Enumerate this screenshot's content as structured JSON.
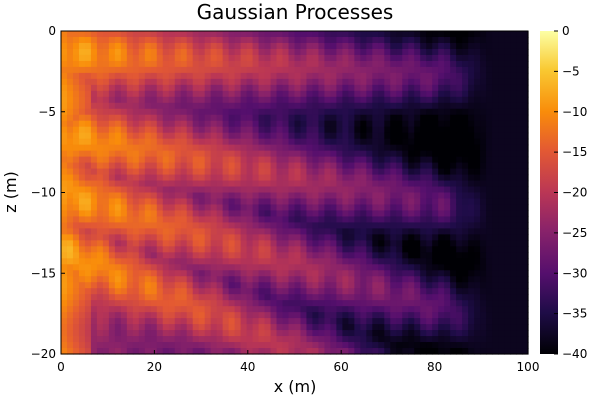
{
  "chart_data": {
    "type": "heatmap",
    "title": "Gaussian Processes",
    "xlabel": "x (m)",
    "ylabel": "z (m)",
    "xlim": [
      0,
      100
    ],
    "ylim": [
      -20,
      0
    ],
    "x_ticks": [
      0,
      20,
      40,
      60,
      80,
      100
    ],
    "y_ticks": [
      0,
      -5,
      -10,
      -15,
      -20
    ],
    "colorbar": {
      "colormap": "inferno",
      "range": [
        -40,
        0
      ],
      "ticks": [
        0,
        -5,
        -10,
        -15,
        -20,
        -25,
        -30,
        -35,
        -40
      ]
    },
    "field_description_values": {
      "near_source_x0_value": -14,
      "far_right_value": -38,
      "beam_centers_z_at_x40": [
        -2,
        -8.5,
        -13.5,
        -18.5
      ]
    }
  },
  "colors": {
    "background": "#ffffff",
    "axis": "#000000"
  }
}
